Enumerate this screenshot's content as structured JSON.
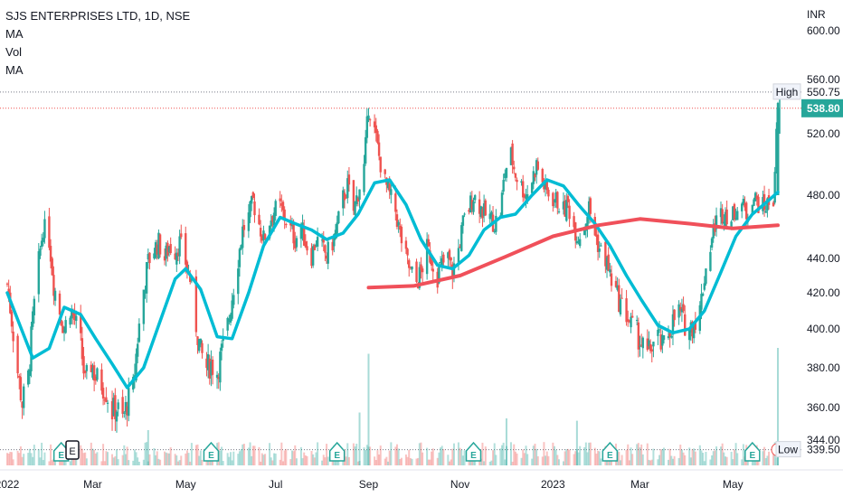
{
  "legend": {
    "title": "SJS ENTERPRISES LTD, 1D, NSE",
    "items": [
      "MA",
      "Vol",
      "MA"
    ]
  },
  "currency": "INR",
  "chart_data": {
    "type": "candlestick",
    "x_ticks": [
      {
        "label": "2022",
        "date": "2022-01-03"
      },
      {
        "label": "Mar",
        "date": "2022-03-01"
      },
      {
        "label": "May",
        "date": "2022-05-02"
      },
      {
        "label": "Jul",
        "date": "2022-07-01"
      },
      {
        "label": "Sep",
        "date": "2022-09-01"
      },
      {
        "label": "Nov",
        "date": "2022-11-01"
      },
      {
        "label": "2023",
        "date": "2023-01-02"
      },
      {
        "label": "Mar",
        "date": "2023-03-01"
      },
      {
        "label": "May",
        "date": "2023-05-02"
      }
    ],
    "y_ticks": [
      600,
      560,
      520,
      480,
      440,
      420,
      400,
      380,
      360,
      344
    ],
    "price_labels": {
      "high": {
        "label": "High",
        "value": "550.75"
      },
      "last": {
        "value": "538.80"
      },
      "low": {
        "label": "Low",
        "value": "339.50"
      }
    },
    "close_path": [
      [
        "2022-01-03",
        425
      ],
      [
        "2022-01-06",
        405
      ],
      [
        "2022-01-10",
        378
      ],
      [
        "2022-01-13",
        362
      ],
      [
        "2022-01-17",
        375
      ],
      [
        "2022-01-20",
        405
      ],
      [
        "2022-01-24",
        438
      ],
      [
        "2022-01-27",
        460
      ],
      [
        "2022-01-31",
        452
      ],
      [
        "2022-02-03",
        425
      ],
      [
        "2022-02-07",
        410
      ],
      [
        "2022-02-10",
        400
      ],
      [
        "2022-02-14",
        412
      ],
      [
        "2022-02-17",
        405
      ],
      [
        "2022-02-21",
        392
      ],
      [
        "2022-02-24",
        372
      ],
      [
        "2022-02-28",
        382
      ],
      [
        "2022-03-03",
        375
      ],
      [
        "2022-03-07",
        372
      ],
      [
        "2022-03-10",
        368
      ],
      [
        "2022-03-14",
        358
      ],
      [
        "2022-03-17",
        360
      ],
      [
        "2022-03-21",
        354
      ],
      [
        "2022-03-24",
        362
      ],
      [
        "2022-03-28",
        370
      ],
      [
        "2022-03-31",
        395
      ],
      [
        "2022-04-04",
        422
      ],
      [
        "2022-04-07",
        438
      ],
      [
        "2022-04-11",
        446
      ],
      [
        "2022-04-14",
        450
      ],
      [
        "2022-04-18",
        440
      ],
      [
        "2022-04-21",
        448
      ],
      [
        "2022-04-25",
        445
      ],
      [
        "2022-04-28",
        450
      ],
      [
        "2022-05-02",
        438
      ],
      [
        "2022-05-05",
        428
      ],
      [
        "2022-05-09",
        402
      ],
      [
        "2022-05-12",
        388
      ],
      [
        "2022-05-16",
        380
      ],
      [
        "2022-05-19",
        382
      ],
      [
        "2022-05-23",
        378
      ],
      [
        "2022-05-26",
        388
      ],
      [
        "2022-05-30",
        402
      ],
      [
        "2022-06-02",
        418
      ],
      [
        "2022-06-06",
        440
      ],
      [
        "2022-06-09",
        458
      ],
      [
        "2022-06-13",
        466
      ],
      [
        "2022-06-16",
        476
      ],
      [
        "2022-06-20",
        462
      ],
      [
        "2022-06-23",
        452
      ],
      [
        "2022-06-27",
        464
      ],
      [
        "2022-06-30",
        470
      ],
      [
        "2022-07-04",
        472
      ],
      [
        "2022-07-07",
        466
      ],
      [
        "2022-07-11",
        458
      ],
      [
        "2022-07-14",
        452
      ],
      [
        "2022-07-18",
        460
      ],
      [
        "2022-07-21",
        450
      ],
      [
        "2022-07-25",
        442
      ],
      [
        "2022-07-28",
        452
      ],
      [
        "2022-08-01",
        446
      ],
      [
        "2022-08-04",
        442
      ],
      [
        "2022-08-08",
        450
      ],
      [
        "2022-08-11",
        460
      ],
      [
        "2022-08-15",
        478
      ],
      [
        "2022-08-18",
        486
      ],
      [
        "2022-08-22",
        470
      ],
      [
        "2022-08-25",
        482
      ],
      [
        "2022-08-29",
        498
      ],
      [
        "2022-09-01",
        540
      ],
      [
        "2022-09-05",
        522
      ],
      [
        "2022-09-08",
        505
      ],
      [
        "2022-09-12",
        488
      ],
      [
        "2022-09-15",
        480
      ],
      [
        "2022-09-19",
        470
      ],
      [
        "2022-09-22",
        455
      ],
      [
        "2022-09-26",
        440
      ],
      [
        "2022-09-29",
        432
      ],
      [
        "2022-10-03",
        426
      ],
      [
        "2022-10-06",
        432
      ],
      [
        "2022-10-10",
        446
      ],
      [
        "2022-10-13",
        440
      ],
      [
        "2022-10-17",
        430
      ],
      [
        "2022-10-20",
        436
      ],
      [
        "2022-10-24",
        440
      ],
      [
        "2022-10-27",
        432
      ],
      [
        "2022-10-31",
        446
      ],
      [
        "2022-11-03",
        462
      ],
      [
        "2022-11-07",
        472
      ],
      [
        "2022-11-10",
        480
      ],
      [
        "2022-11-14",
        474
      ],
      [
        "2022-11-17",
        468
      ],
      [
        "2022-11-21",
        466
      ],
      [
        "2022-11-24",
        462
      ],
      [
        "2022-11-28",
        470
      ],
      [
        "2022-12-01",
        496
      ],
      [
        "2022-12-05",
        506
      ],
      [
        "2022-12-08",
        494
      ],
      [
        "2022-12-12",
        486
      ],
      [
        "2022-12-15",
        480
      ],
      [
        "2022-12-19",
        490
      ],
      [
        "2022-12-22",
        500
      ],
      [
        "2022-12-26",
        488
      ],
      [
        "2022-12-29",
        482
      ],
      [
        "2023-01-02",
        478
      ],
      [
        "2023-01-05",
        476
      ],
      [
        "2023-01-09",
        470
      ],
      [
        "2023-01-12",
        474
      ],
      [
        "2023-01-16",
        460
      ],
      [
        "2023-01-19",
        454
      ],
      [
        "2023-01-23",
        462
      ],
      [
        "2023-01-26",
        472
      ],
      [
        "2023-01-30",
        456
      ],
      [
        "2023-02-02",
        446
      ],
      [
        "2023-02-06",
        440
      ],
      [
        "2023-02-09",
        430
      ],
      [
        "2023-02-13",
        420
      ],
      [
        "2023-02-16",
        414
      ],
      [
        "2023-02-20",
        408
      ],
      [
        "2023-02-23",
        402
      ],
      [
        "2023-02-27",
        398
      ],
      [
        "2023-03-02",
        392
      ],
      [
        "2023-03-06",
        386
      ],
      [
        "2023-03-09",
        392
      ],
      [
        "2023-03-13",
        396
      ],
      [
        "2023-03-16",
        390
      ],
      [
        "2023-03-20",
        398
      ],
      [
        "2023-03-23",
        404
      ],
      [
        "2023-03-27",
        410
      ],
      [
        "2023-03-30",
        404
      ],
      [
        "2023-04-03",
        400
      ],
      [
        "2023-04-06",
        404
      ],
      [
        "2023-04-10",
        410
      ],
      [
        "2023-04-13",
        430
      ],
      [
        "2023-04-17",
        448
      ],
      [
        "2023-04-20",
        462
      ],
      [
        "2023-04-24",
        468
      ],
      [
        "2023-04-27",
        470
      ],
      [
        "2023-05-01",
        464
      ],
      [
        "2023-05-04",
        472
      ],
      [
        "2023-05-08",
        474
      ],
      [
        "2023-05-11",
        468
      ],
      [
        "2023-05-15",
        480
      ],
      [
        "2023-05-18",
        476
      ],
      [
        "2023-05-22",
        472
      ],
      [
        "2023-05-25",
        474
      ],
      [
        "2023-05-29",
        478
      ],
      [
        "2023-06-01",
        538.8
      ]
    ],
    "ma_short": [
      [
        "2022-01-03",
        420
      ],
      [
        "2022-01-20",
        385
      ],
      [
        "2022-01-31",
        390
      ],
      [
        "2022-02-10",
        412
      ],
      [
        "2022-02-21",
        408
      ],
      [
        "2022-03-03",
        395
      ],
      [
        "2022-03-14",
        382
      ],
      [
        "2022-03-24",
        370
      ],
      [
        "2022-04-04",
        380
      ],
      [
        "2022-04-14",
        402
      ],
      [
        "2022-04-25",
        428
      ],
      [
        "2022-05-02",
        434
      ],
      [
        "2022-05-12",
        422
      ],
      [
        "2022-05-23",
        396
      ],
      [
        "2022-06-02",
        395
      ],
      [
        "2022-06-13",
        420
      ],
      [
        "2022-06-23",
        448
      ],
      [
        "2022-07-04",
        466
      ],
      [
        "2022-07-14",
        462
      ],
      [
        "2022-07-25",
        458
      ],
      [
        "2022-08-04",
        452
      ],
      [
        "2022-08-15",
        456
      ],
      [
        "2022-08-25",
        468
      ],
      [
        "2022-09-05",
        488
      ],
      [
        "2022-09-15",
        490
      ],
      [
        "2022-09-26",
        474
      ],
      [
        "2022-10-06",
        452
      ],
      [
        "2022-10-17",
        436
      ],
      [
        "2022-10-27",
        434
      ],
      [
        "2022-11-07",
        442
      ],
      [
        "2022-11-17",
        458
      ],
      [
        "2022-11-28",
        466
      ],
      [
        "2022-12-08",
        468
      ],
      [
        "2022-12-19",
        480
      ],
      [
        "2022-12-29",
        490
      ],
      [
        "2023-01-09",
        486
      ],
      [
        "2023-01-19",
        474
      ],
      [
        "2023-01-30",
        462
      ],
      [
        "2023-02-09",
        448
      ],
      [
        "2023-02-20",
        430
      ],
      [
        "2023-03-02",
        416
      ],
      [
        "2023-03-13",
        402
      ],
      [
        "2023-03-23",
        398
      ],
      [
        "2023-04-03",
        400
      ],
      [
        "2023-04-13",
        410
      ],
      [
        "2023-04-24",
        432
      ],
      [
        "2023-05-04",
        454
      ],
      [
        "2023-05-15",
        468
      ],
      [
        "2023-05-25",
        476
      ],
      [
        "2023-06-01",
        482
      ]
    ],
    "ma_long": [
      [
        "2022-09-01",
        423
      ],
      [
        "2022-10-01",
        424
      ],
      [
        "2022-11-01",
        430
      ],
      [
        "2022-12-01",
        441
      ],
      [
        "2023-01-02",
        454
      ],
      [
        "2023-02-01",
        461
      ],
      [
        "2023-03-01",
        465
      ],
      [
        "2023-04-03",
        462
      ],
      [
        "2023-05-02",
        459
      ],
      [
        "2023-06-01",
        461
      ]
    ],
    "earnings_markers": [
      {
        "date": "2022-02-08",
        "label": "E"
      },
      {
        "date": "2022-05-19",
        "label": "E"
      },
      {
        "date": "2022-08-11",
        "label": "E"
      },
      {
        "date": "2022-11-10",
        "label": "E"
      },
      {
        "date": "2023-02-09",
        "label": "E"
      },
      {
        "date": "2023-05-15",
        "label": "E"
      }
    ],
    "volume_spikes": [
      {
        "date": "2022-09-01",
        "value": 0.95
      },
      {
        "date": "2022-08-26",
        "value": 0.45
      },
      {
        "date": "2022-12-02",
        "value": 0.4
      },
      {
        "date": "2023-06-01",
        "value": 1.0
      },
      {
        "date": "2023-01-18",
        "value": 0.38
      },
      {
        "date": "2022-04-07",
        "value": 0.3
      }
    ]
  },
  "colors": {
    "up": "#26a69a",
    "down": "#ef5350",
    "ma_short": "#00bcd4",
    "ma_long": "#f0505a",
    "grid_line": "#ef5350"
  }
}
